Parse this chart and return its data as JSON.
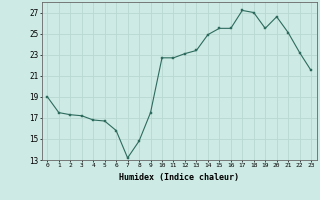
{
  "x": [
    0,
    1,
    2,
    3,
    4,
    5,
    6,
    7,
    8,
    9,
    10,
    11,
    12,
    13,
    14,
    15,
    16,
    17,
    18,
    19,
    20,
    21,
    22,
    23
  ],
  "y": [
    19,
    17.5,
    17.3,
    17.2,
    16.8,
    16.7,
    15.8,
    13.2,
    14.8,
    17.5,
    22.7,
    22.7,
    23.1,
    23.4,
    24.9,
    25.5,
    25.5,
    27.2,
    27.0,
    25.5,
    26.6,
    25.1,
    23.2,
    21.5
  ],
  "title": "",
  "xlabel": "Humidex (Indice chaleur)",
  "ylabel": "",
  "xlim": [
    -0.5,
    23.5
  ],
  "ylim": [
    13,
    28
  ],
  "yticks": [
    13,
    15,
    17,
    19,
    21,
    23,
    25,
    27
  ],
  "xticks": [
    0,
    1,
    2,
    3,
    4,
    5,
    6,
    7,
    8,
    9,
    10,
    11,
    12,
    13,
    14,
    15,
    16,
    17,
    18,
    19,
    20,
    21,
    22,
    23
  ],
  "line_color": "#2d6b5e",
  "marker_color": "#2d6b5e",
  "bg_color": "#ceeae4",
  "grid_color": "#b8d8d2",
  "text_color": "#000000",
  "font_family": "monospace"
}
